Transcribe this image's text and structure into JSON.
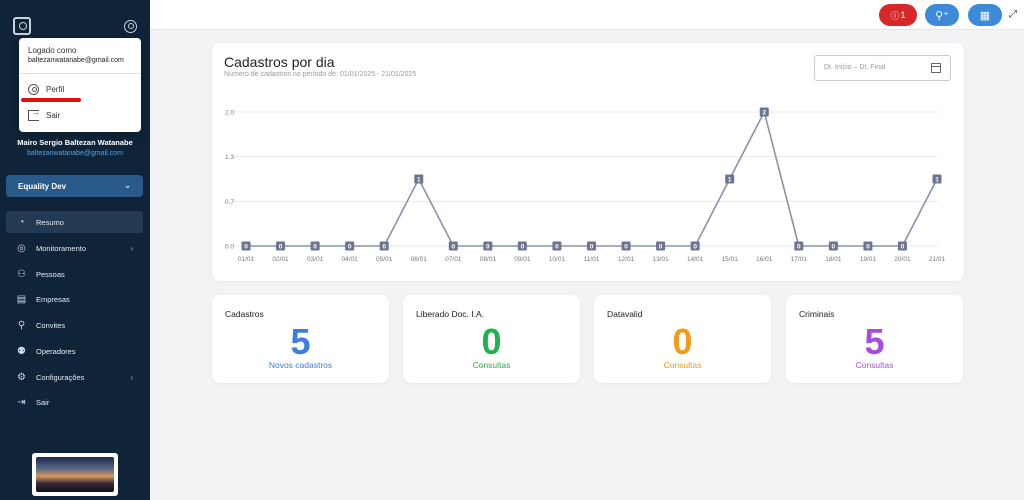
{
  "sidebar": {
    "user_menu": {
      "logged_as_label": "Logado como",
      "email": "baltezanwatanabe@gmail.com",
      "items": [
        {
          "label": "Perfil",
          "icon": "user-circle-icon"
        },
        {
          "label": "Sair",
          "icon": "logout-icon"
        }
      ]
    },
    "user_name": "Mairo Sergio Baltezan Watanabe",
    "user_email": "baltezanwatanabe@gmail.com",
    "organization": "Equality Dev",
    "nav": [
      {
        "label": "Resumo",
        "icon": "pie-chart-icon",
        "active": true,
        "has_submenu": false
      },
      {
        "label": "Monitoramento",
        "icon": "globe-icon",
        "active": false,
        "has_submenu": true
      },
      {
        "label": "Pessoas",
        "icon": "people-icon",
        "active": false,
        "has_submenu": false
      },
      {
        "label": "Empresas",
        "icon": "store-icon",
        "active": false,
        "has_submenu": false
      },
      {
        "label": "Convites",
        "icon": "user-plus-icon",
        "active": false,
        "has_submenu": false
      },
      {
        "label": "Operadores",
        "icon": "users-icon",
        "active": false,
        "has_submenu": false
      },
      {
        "label": "Configurações",
        "icon": "gear-icon",
        "active": false,
        "has_submenu": true
      },
      {
        "label": "Sair",
        "icon": "logout-icon",
        "active": false,
        "has_submenu": false
      }
    ]
  },
  "topbar": {
    "alert_count": "1",
    "alert_color": "#d62828",
    "action_color": "#3d8ad8"
  },
  "chart_card": {
    "title": "Cadastros por dia",
    "subtitle": "Número de cadastros no período de: 01/01/2025 - 21/01/2025",
    "date_placeholder": "Dt. Início – Dt. Final"
  },
  "chart_data": {
    "type": "line",
    "x": [
      "01/01",
      "02/01",
      "03/01",
      "04/01",
      "05/01",
      "06/01",
      "07/01",
      "08/01",
      "09/01",
      "10/01",
      "11/01",
      "12/01",
      "13/01",
      "14/01",
      "15/01",
      "16/01",
      "17/01",
      "18/01",
      "19/01",
      "20/01",
      "21/01"
    ],
    "values": [
      0,
      0,
      0,
      0,
      0,
      1,
      0,
      0,
      0,
      0,
      0,
      0,
      0,
      0,
      1,
      2,
      0,
      0,
      0,
      0,
      1
    ],
    "yticks": [
      "0.0",
      "0.7",
      "1.3",
      "2.0"
    ],
    "ylim": [
      0,
      2
    ],
    "grid": true,
    "line_color": "#8a93a6"
  },
  "stats": [
    {
      "title": "Cadastros",
      "value": "5",
      "subtitle": "Novos cadastros",
      "color": "#3b7de0"
    },
    {
      "title": "Liberado Doc. I.A.",
      "value": "0",
      "subtitle": "Consultas",
      "color": "#22b14c"
    },
    {
      "title": "Datavalid",
      "value": "0",
      "subtitle": "Consultas",
      "color": "#f29a1a"
    },
    {
      "title": "Criminais",
      "value": "5",
      "subtitle": "Consultas",
      "color": "#a64de0"
    }
  ]
}
